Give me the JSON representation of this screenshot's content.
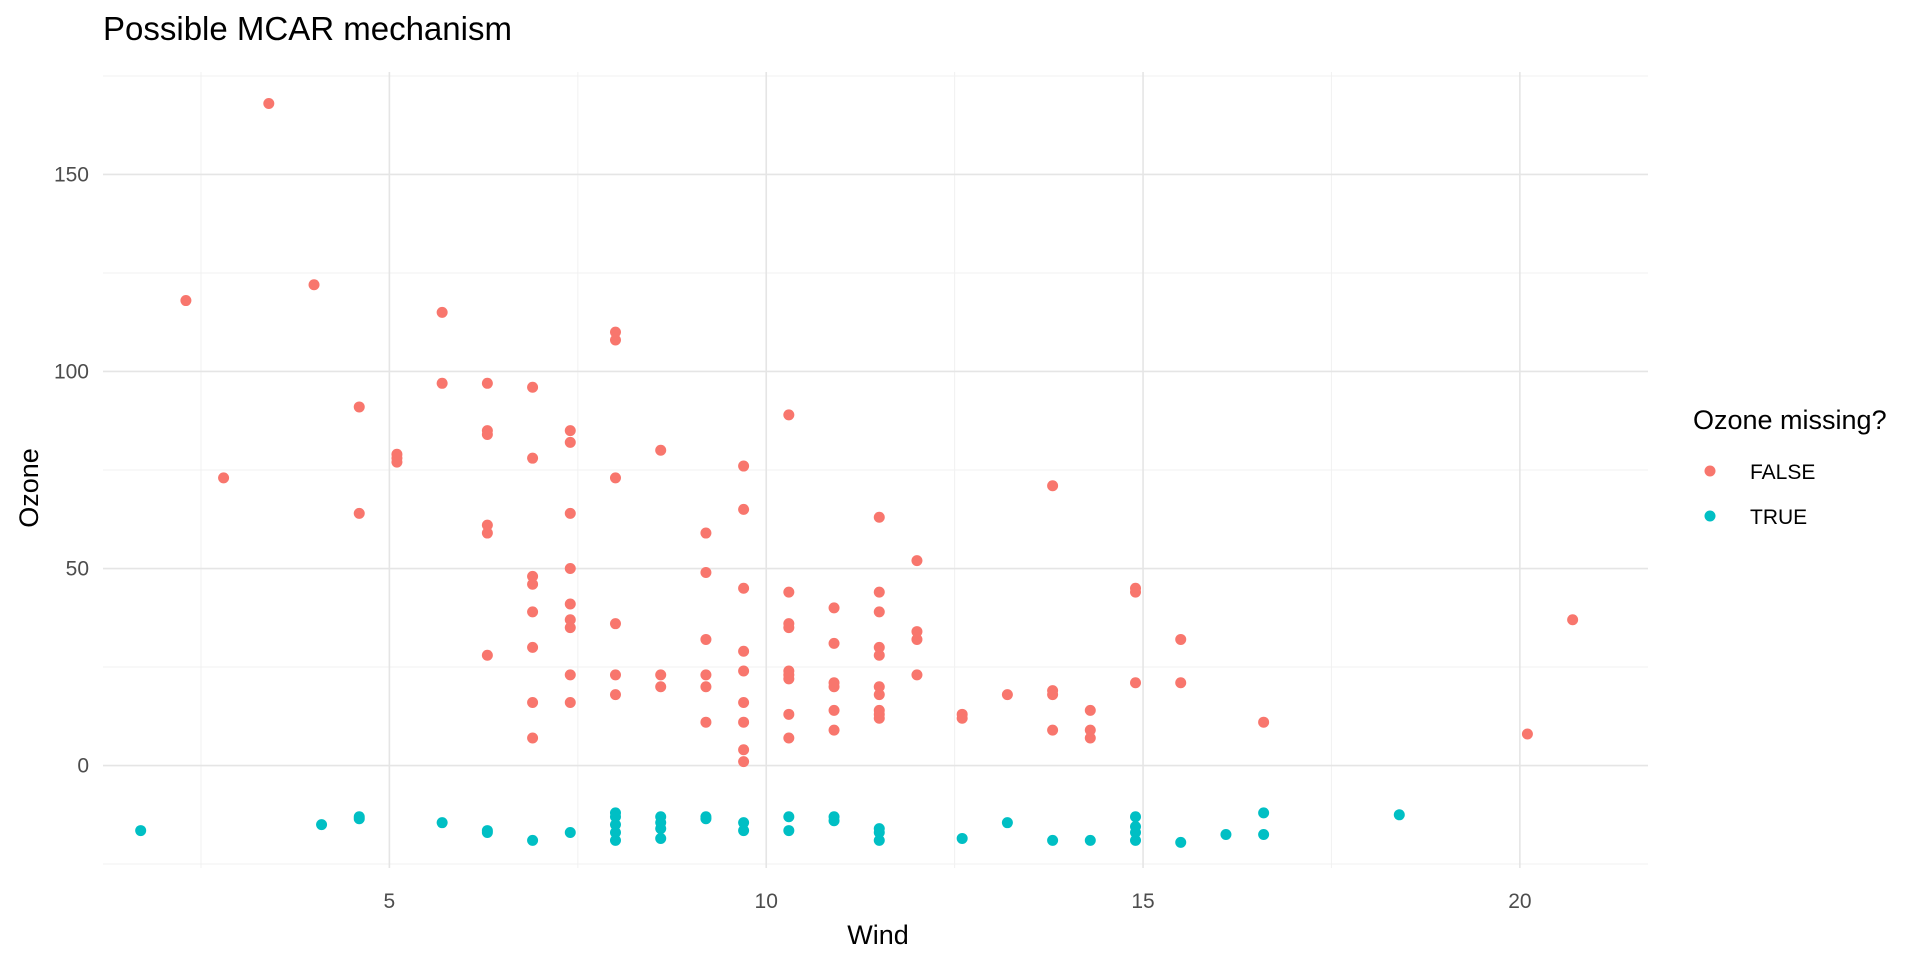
{
  "chart_data": {
    "type": "scatter",
    "title": "Possible MCAR mechanism",
    "xlabel": "Wind",
    "ylabel": "Ozone",
    "xlim": [
      1.2,
      21.7
    ],
    "ylim": [
      -26,
      176
    ],
    "x_ticks": [
      5,
      10,
      15,
      20
    ],
    "y_ticks": [
      0,
      50,
      100,
      150
    ],
    "x_tick_labels": [
      "5",
      "10",
      "15",
      "20"
    ],
    "y_tick_labels": [
      "0",
      "50",
      "100",
      "150"
    ],
    "grid": true,
    "legend": {
      "title": "Ozone missing?",
      "position": "right"
    },
    "series": [
      {
        "name": "FALSE",
        "color": "#F8766D",
        "points": [
          [
            2.3,
            118
          ],
          [
            2.8,
            73
          ],
          [
            3.4,
            168
          ],
          [
            4.0,
            122
          ],
          [
            4.6,
            91
          ],
          [
            4.6,
            64
          ],
          [
            5.1,
            79
          ],
          [
            5.1,
            78
          ],
          [
            5.1,
            77
          ],
          [
            5.7,
            115
          ],
          [
            5.7,
            97
          ],
          [
            6.3,
            97
          ],
          [
            6.3,
            85
          ],
          [
            6.3,
            84
          ],
          [
            6.3,
            61
          ],
          [
            6.3,
            59
          ],
          [
            6.3,
            28
          ],
          [
            6.9,
            96
          ],
          [
            6.9,
            78
          ],
          [
            6.9,
            48
          ],
          [
            6.9,
            46
          ],
          [
            6.9,
            39
          ],
          [
            6.9,
            30
          ],
          [
            6.9,
            16
          ],
          [
            6.9,
            7
          ],
          [
            7.4,
            85
          ],
          [
            7.4,
            82
          ],
          [
            7.4,
            64
          ],
          [
            7.4,
            50
          ],
          [
            7.4,
            41
          ],
          [
            7.4,
            37
          ],
          [
            7.4,
            35
          ],
          [
            7.4,
            23
          ],
          [
            7.4,
            16
          ],
          [
            8.0,
            110
          ],
          [
            8.0,
            108
          ],
          [
            8.0,
            73
          ],
          [
            8.0,
            36
          ],
          [
            8.0,
            23
          ],
          [
            8.0,
            18
          ],
          [
            8.6,
            80
          ],
          [
            8.6,
            23
          ],
          [
            8.6,
            20
          ],
          [
            9.2,
            59
          ],
          [
            9.2,
            49
          ],
          [
            9.2,
            32
          ],
          [
            9.2,
            23
          ],
          [
            9.2,
            20
          ],
          [
            9.2,
            11
          ],
          [
            9.7,
            76
          ],
          [
            9.7,
            65
          ],
          [
            9.7,
            45
          ],
          [
            9.7,
            29
          ],
          [
            9.7,
            24
          ],
          [
            9.7,
            16
          ],
          [
            9.7,
            11
          ],
          [
            9.7,
            4
          ],
          [
            9.7,
            1
          ],
          [
            10.3,
            89
          ],
          [
            10.3,
            44
          ],
          [
            10.3,
            36
          ],
          [
            10.3,
            35
          ],
          [
            10.3,
            24
          ],
          [
            10.3,
            23
          ],
          [
            10.3,
            22
          ],
          [
            10.3,
            13
          ],
          [
            10.3,
            7
          ],
          [
            10.9,
            40
          ],
          [
            10.9,
            31
          ],
          [
            10.9,
            21
          ],
          [
            10.9,
            20
          ],
          [
            10.9,
            14
          ],
          [
            10.9,
            9
          ],
          [
            11.5,
            63
          ],
          [
            11.5,
            44
          ],
          [
            11.5,
            39
          ],
          [
            11.5,
            30
          ],
          [
            11.5,
            28
          ],
          [
            11.5,
            20
          ],
          [
            11.5,
            18
          ],
          [
            11.5,
            14
          ],
          [
            11.5,
            13
          ],
          [
            11.5,
            12
          ],
          [
            12.0,
            52
          ],
          [
            12.0,
            34
          ],
          [
            12.0,
            32
          ],
          [
            12.0,
            23
          ],
          [
            12.6,
            13
          ],
          [
            12.6,
            12
          ],
          [
            13.2,
            18
          ],
          [
            13.8,
            71
          ],
          [
            13.8,
            19
          ],
          [
            13.8,
            18
          ],
          [
            13.8,
            9
          ],
          [
            14.3,
            14
          ],
          [
            14.3,
            9
          ],
          [
            14.3,
            7
          ],
          [
            14.9,
            45
          ],
          [
            14.9,
            44
          ],
          [
            14.9,
            21
          ],
          [
            15.5,
            32
          ],
          [
            15.5,
            21
          ],
          [
            16.6,
            11
          ],
          [
            20.1,
            8
          ],
          [
            20.7,
            37
          ]
        ]
      },
      {
        "name": "TRUE",
        "color": "#00BFC4",
        "points": [
          [
            1.7,
            -16.5
          ],
          [
            4.1,
            -15
          ],
          [
            4.6,
            -13
          ],
          [
            4.6,
            -13.5
          ],
          [
            5.7,
            -14.5
          ],
          [
            6.3,
            -16.5
          ],
          [
            6.3,
            -17
          ],
          [
            6.9,
            -19
          ],
          [
            7.4,
            -17
          ],
          [
            8.0,
            -12
          ],
          [
            8.0,
            -13
          ],
          [
            8.0,
            -15
          ],
          [
            8.0,
            -17
          ],
          [
            8.0,
            -19
          ],
          [
            8.6,
            -13
          ],
          [
            8.6,
            -14.5
          ],
          [
            8.6,
            -16
          ],
          [
            8.6,
            -18.5
          ],
          [
            9.2,
            -13
          ],
          [
            9.2,
            -13.5
          ],
          [
            9.7,
            -14.5
          ],
          [
            9.7,
            -16.5
          ],
          [
            10.3,
            -13
          ],
          [
            10.3,
            -16.5
          ],
          [
            10.9,
            -13
          ],
          [
            10.9,
            -14
          ],
          [
            11.5,
            -16
          ],
          [
            11.5,
            -17
          ],
          [
            11.5,
            -19
          ],
          [
            12.6,
            -18.5
          ],
          [
            13.2,
            -14.5
          ],
          [
            13.8,
            -19
          ],
          [
            14.3,
            -19
          ],
          [
            14.9,
            -13
          ],
          [
            14.9,
            -15.5
          ],
          [
            14.9,
            -17
          ],
          [
            14.9,
            -19
          ],
          [
            15.5,
            -19.5
          ],
          [
            16.1,
            -17.5
          ],
          [
            16.6,
            -12
          ],
          [
            16.6,
            -17.5
          ],
          [
            18.4,
            -12.5
          ]
        ]
      }
    ]
  }
}
